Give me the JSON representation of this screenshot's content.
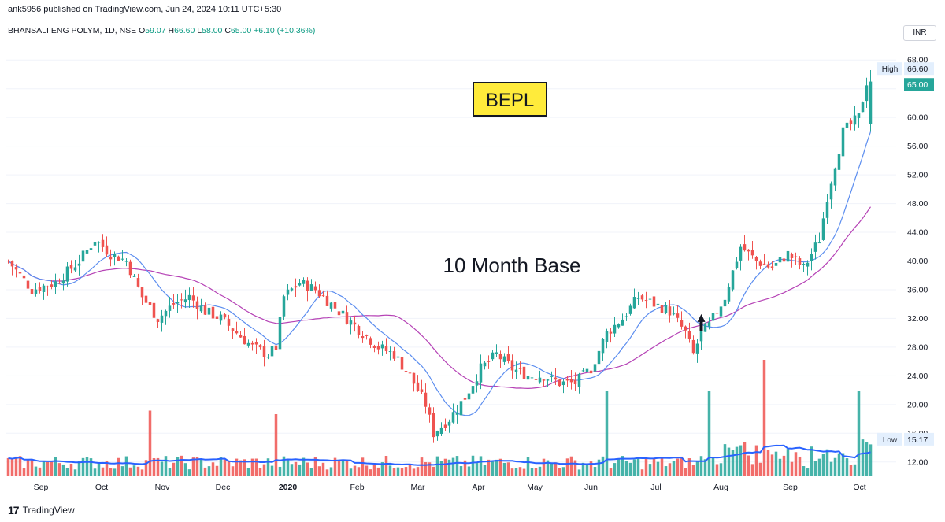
{
  "header": {
    "published_text": "ank5956 published on TradingView.com, Jun 24, 2024 10:11 UTC+5:30"
  },
  "symbol": {
    "name": "BHANSALI ENG POLYM, 1D, NSE",
    "open_label": "O",
    "open": "59.07",
    "high_label": "H",
    "high": "66.60",
    "low_label": "L",
    "low": "58.00",
    "close_label": "C",
    "close": "65.00",
    "change": "+6.10 (+10.36%)"
  },
  "currency": "INR",
  "footer": {
    "logo_icon": "tradingview-logo-icon",
    "logo_text": "TradingView"
  },
  "colors": {
    "up": "#26a69a",
    "down": "#ef5350",
    "ma_fast": "#5b8def",
    "ma_slow": "#b541b5",
    "volume_ma": "#2962ff",
    "grid": "#f0f3fa",
    "label_box": "#ffeb3b"
  },
  "chart_data": {
    "type": "candlestick",
    "title": "BEPL",
    "annotation": "10 Month Base",
    "y_axis": {
      "ticks": [
        "12.00",
        "16.00",
        "20.00",
        "24.00",
        "28.00",
        "32.00",
        "36.00",
        "40.00",
        "44.00",
        "48.00",
        "52.00",
        "56.00",
        "60.00",
        "64.00",
        "68.00"
      ],
      "range": [
        10,
        70
      ]
    },
    "x_axis": {
      "ticks": [
        "Sep",
        "Oct",
        "Nov",
        "Dec",
        "2020",
        "Feb",
        "Mar",
        "Apr",
        "May",
        "Jun",
        "Jul",
        "Aug",
        "Sep",
        "Oct"
      ]
    },
    "price_labels": {
      "high_label": "High",
      "high_value": "66.60",
      "last_value": "65.00",
      "low_label": "Low",
      "low_value": "15.17"
    },
    "approx_close_path": [
      [
        0,
        40
      ],
      [
        6,
        36
      ],
      [
        12,
        37
      ],
      [
        18,
        40
      ],
      [
        22,
        43
      ],
      [
        26,
        41
      ],
      [
        30,
        40
      ],
      [
        34,
        35
      ],
      [
        38,
        32
      ],
      [
        42,
        34
      ],
      [
        46,
        35
      ],
      [
        50,
        33
      ],
      [
        54,
        32
      ],
      [
        58,
        30
      ],
      [
        62,
        28
      ],
      [
        66,
        27
      ],
      [
        68,
        28
      ],
      [
        70,
        35
      ],
      [
        74,
        37
      ],
      [
        78,
        36
      ],
      [
        82,
        34
      ],
      [
        86,
        32
      ],
      [
        90,
        30
      ],
      [
        94,
        28
      ],
      [
        98,
        27
      ],
      [
        102,
        24
      ],
      [
        106,
        20
      ],
      [
        108,
        16
      ],
      [
        112,
        18
      ],
      [
        116,
        21
      ],
      [
        120,
        25
      ],
      [
        124,
        27
      ],
      [
        128,
        25
      ],
      [
        132,
        24
      ],
      [
        136,
        24
      ],
      [
        140,
        23
      ],
      [
        144,
        23
      ],
      [
        148,
        25
      ],
      [
        152,
        30
      ],
      [
        156,
        32
      ],
      [
        160,
        35
      ],
      [
        164,
        34
      ],
      [
        168,
        33
      ],
      [
        172,
        30
      ],
      [
        174,
        27
      ],
      [
        176,
        30
      ],
      [
        178,
        31
      ],
      [
        182,
        35
      ],
      [
        186,
        42
      ],
      [
        190,
        40
      ],
      [
        194,
        39
      ],
      [
        198,
        41
      ],
      [
        202,
        39
      ],
      [
        206,
        43
      ],
      [
        208,
        49
      ],
      [
        212,
        58
      ],
      [
        216,
        60
      ],
      [
        218,
        65
      ]
    ],
    "volume_spikes": [
      {
        "bar": 36,
        "level": 0.55
      },
      {
        "bar": 68,
        "level": 0.52
      },
      {
        "bar": 152,
        "level": 0.72
      },
      {
        "bar": 178,
        "level": 0.72
      },
      {
        "bar": 192,
        "level": 0.98
      },
      {
        "bar": 216,
        "level": 0.72
      }
    ],
    "indicators": [
      "Fast moving average",
      "Slow moving average",
      "Volume moving average"
    ]
  }
}
